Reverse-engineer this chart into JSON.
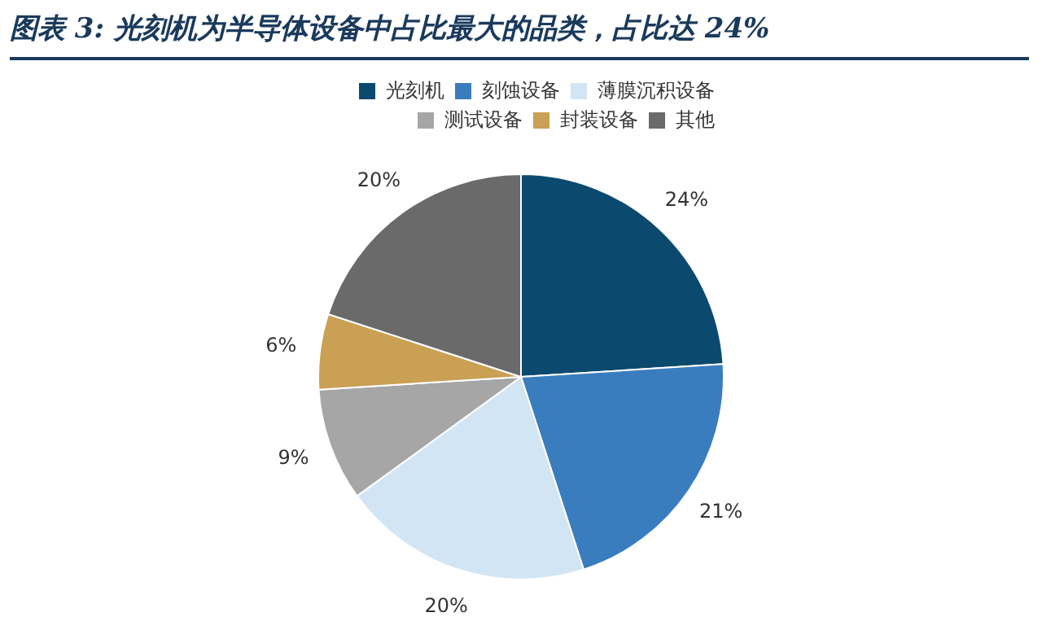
{
  "chart_data": {
    "type": "pie",
    "title": "图表 3: 光刻机为半导体设备中占比最大的品类，占比达 24%",
    "categories": [
      "光刻机",
      "刻蚀设备",
      "薄膜沉积设备",
      "测试设备",
      "封装设备",
      "其他"
    ],
    "values": [
      24,
      21,
      20,
      9,
      6,
      20
    ],
    "colors": [
      "#0b4a6e",
      "#3a7dbf",
      "#d2e5f4",
      "#a6a6a6",
      "#c9a054",
      "#6a6a6a"
    ],
    "value_labels": [
      "24%",
      "21%",
      "20%",
      "9%",
      "6%",
      "20%"
    ],
    "legend": "top"
  }
}
